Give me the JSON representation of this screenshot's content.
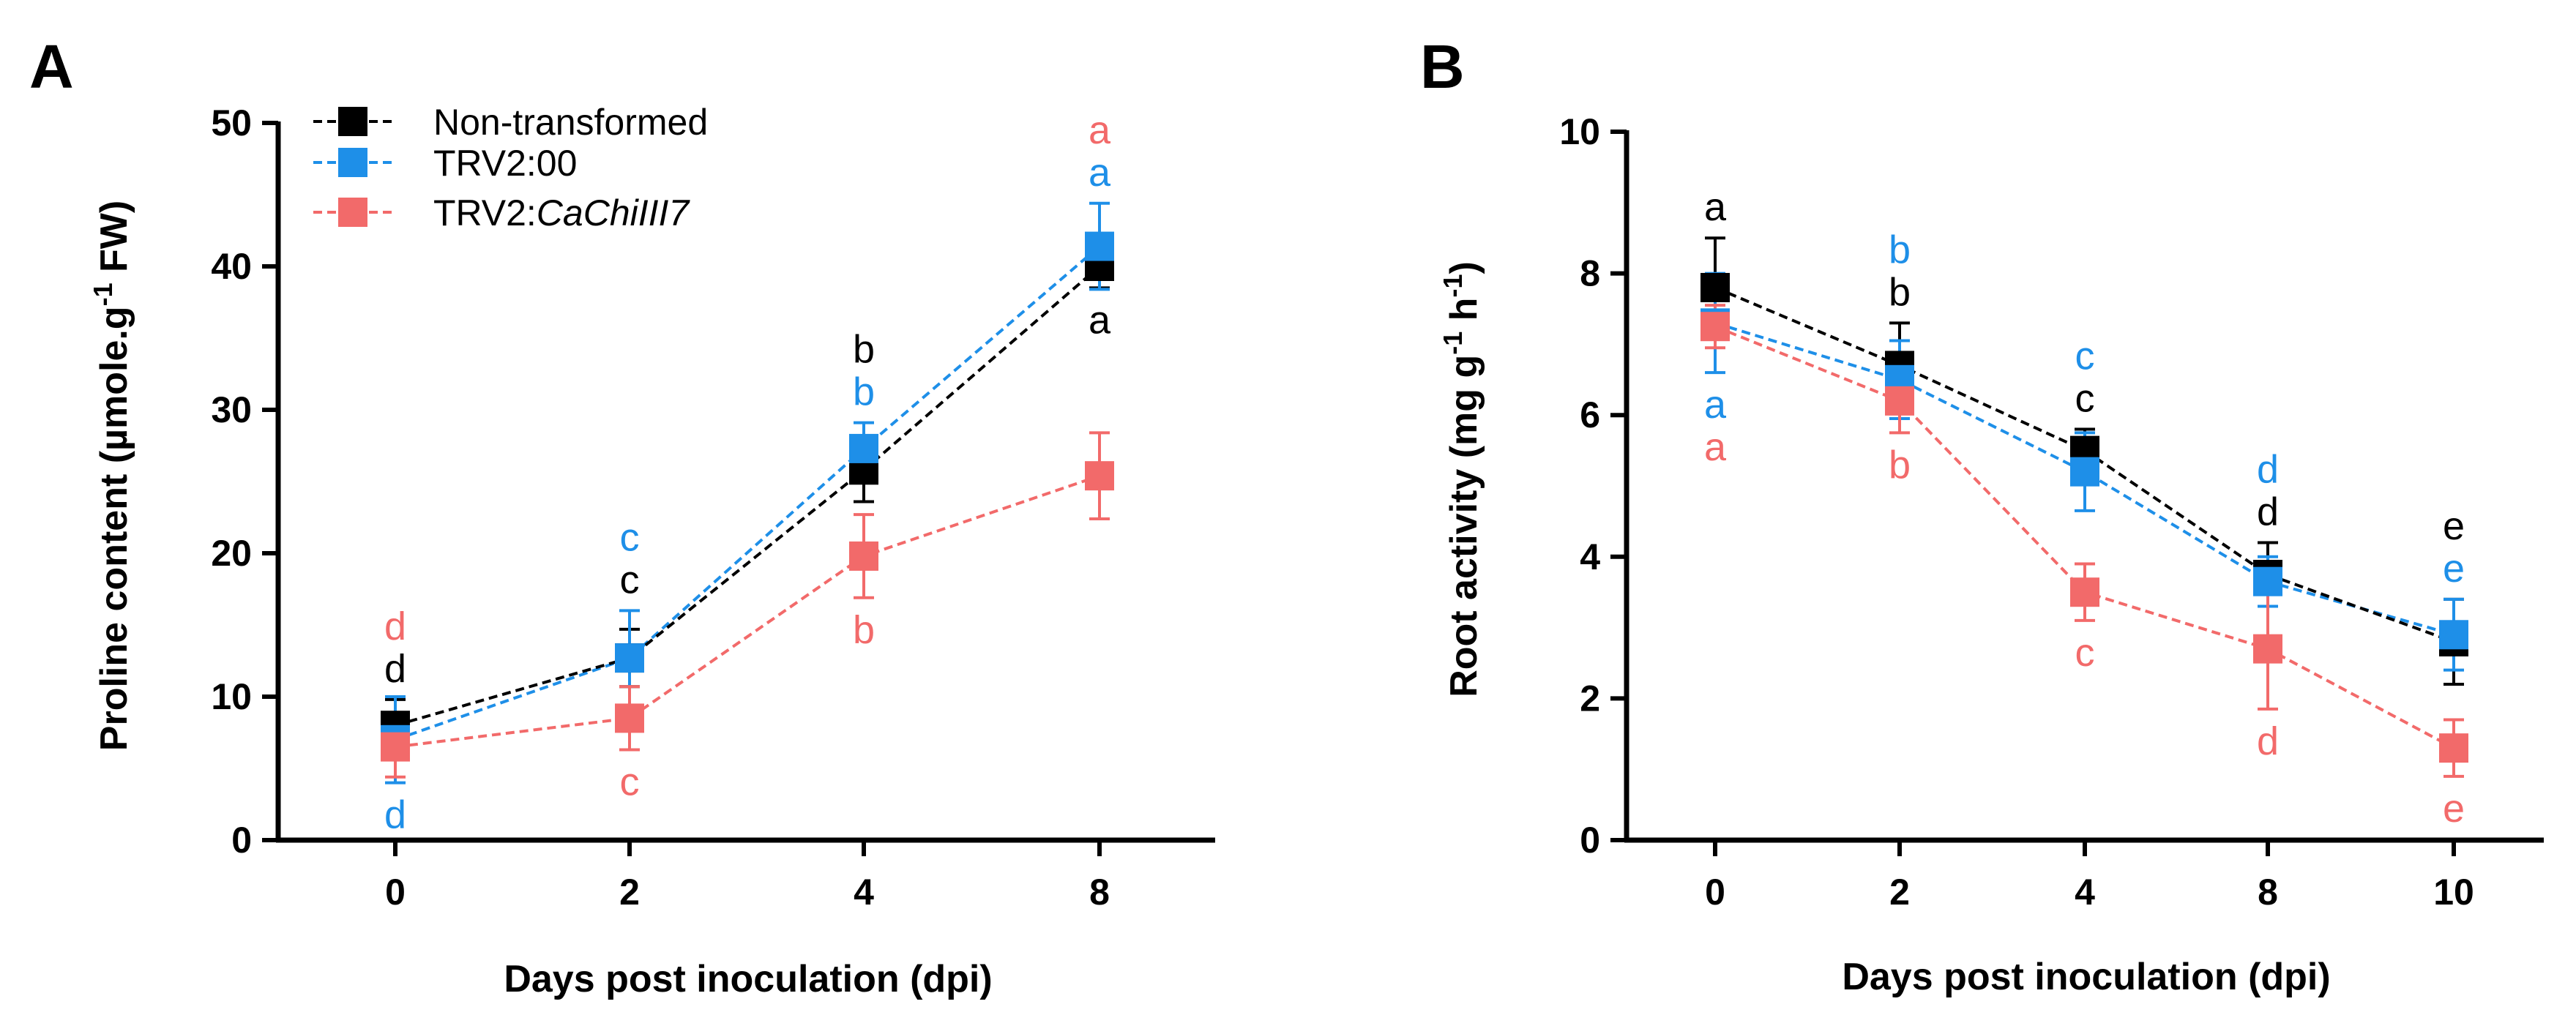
{
  "colors": {
    "Non-transformed": "#000000",
    "TRV2:00": "#1e8fe8",
    "TRV2:CaChiIII7": "#f26a6a"
  },
  "legend": {
    "items": [
      {
        "name": "Non-transformed",
        "prefix": "Non-transformed",
        "italic": ""
      },
      {
        "name": "TRV2:00",
        "prefix": "TRV2:00",
        "italic": ""
      },
      {
        "name": "TRV2:CaChiIII7",
        "prefix": "TRV2:",
        "italic": "CaChiIII7"
      }
    ]
  },
  "chart_data": [
    {
      "panel": "A",
      "type": "line",
      "xlabel": "Days post inoculation (dpi)",
      "ylabel": {
        "main": "Proline content (µmole.g",
        "sup": "-1",
        "tail": " FW)"
      },
      "categories": [
        "0",
        "2",
        "4",
        "8"
      ],
      "ylim": [
        0,
        50
      ],
      "yticks": [
        0,
        10,
        20,
        30,
        40,
        50
      ],
      "series": [
        {
          "name": "Non-transformed",
          "values": [
            8.0,
            12.7,
            25.8,
            40.0
          ],
          "errors": [
            1.8,
            2.0,
            2.2,
            1.5
          ],
          "letters": [
            "d",
            "c",
            "b",
            "a"
          ],
          "letter_pos": [
            "above",
            "above",
            "above",
            "below"
          ]
        },
        {
          "name": "TRV2:00",
          "values": [
            7.0,
            12.7,
            27.3,
            41.4
          ],
          "errors": [
            3.0,
            3.3,
            1.8,
            3.0
          ],
          "letters": [
            "d",
            "c",
            "b",
            "a"
          ],
          "letter_pos": [
            "below",
            "above",
            "above",
            "above"
          ]
        },
        {
          "name": "TRV2:CaChiIII7",
          "values": [
            6.5,
            8.5,
            19.8,
            25.4
          ],
          "errors": [
            2.1,
            2.2,
            2.9,
            3.0
          ],
          "letters": [
            "d",
            "c",
            "b",
            "a"
          ],
          "letter_pos": [
            "above",
            "below",
            "below",
            "above"
          ]
        }
      ]
    },
    {
      "panel": "B",
      "type": "line",
      "xlabel": "Days post inoculation (dpi)",
      "ylabel": {
        "main": "Root activity (mg g",
        "sup": "-1",
        "tail": " h",
        "sup2": "-1",
        "tail2": ")"
      },
      "categories": [
        "0",
        "2",
        "4",
        "8",
        "10"
      ],
      "ylim": [
        0,
        10
      ],
      "yticks": [
        0,
        2,
        4,
        6,
        8,
        10
      ],
      "series": [
        {
          "name": "Non-transformed",
          "values": [
            7.8,
            6.7,
            5.5,
            3.75,
            2.8
          ],
          "errors": [
            0.7,
            0.6,
            0.3,
            0.45,
            0.6
          ],
          "letters": [
            "a",
            "b",
            "c",
            "d",
            "e"
          ],
          "letter_pos": [
            "above",
            "above",
            "above",
            "above",
            "above"
          ]
        },
        {
          "name": "TRV2:00",
          "values": [
            7.3,
            6.5,
            5.2,
            3.65,
            2.9
          ],
          "errors": [
            0.7,
            0.55,
            0.55,
            0.35,
            0.5
          ],
          "letters": [
            "a",
            "b",
            "c",
            "d",
            "e"
          ],
          "letter_pos": [
            "below",
            "above",
            "above",
            "above",
            "above"
          ]
        },
        {
          "name": "TRV2:CaChiIII7",
          "values": [
            7.25,
            6.2,
            3.5,
            2.7,
            1.3
          ],
          "errors": [
            0.3,
            0.45,
            0.4,
            0.85,
            0.4
          ],
          "letters": [
            "a",
            "b",
            "c",
            "d",
            "e"
          ],
          "letter_pos": [
            "below",
            "below",
            "below",
            "below",
            "below"
          ]
        }
      ]
    }
  ]
}
